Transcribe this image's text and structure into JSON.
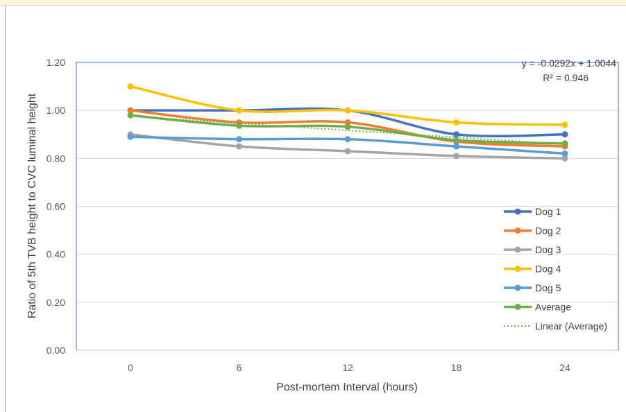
{
  "colors": {
    "dog1": "#4472C4",
    "dog2": "#ED7D31",
    "dog3": "#A5A5A5",
    "dog4": "#FFC000",
    "dog5": "#5B9BD5",
    "average": "#70AD47",
    "gridline": "#d9d9d9",
    "plot_border": "#4472C4"
  },
  "chart_data": {
    "type": "line",
    "title": "",
    "xlabel": "Post-mortem Interval (hours)",
    "ylabel": "Ratio of 5th TVB height to CVC luminal height",
    "categories": [
      "0",
      "6",
      "12",
      "18",
      "24"
    ],
    "x": [
      0,
      6,
      12,
      18,
      24
    ],
    "ylim": [
      0,
      1.2
    ],
    "yticks": [
      "0.00",
      "0.20",
      "0.40",
      "0.60",
      "0.80",
      "1.00",
      "1.20"
    ],
    "grid": true,
    "legend_position": "right",
    "series": [
      {
        "name": "Dog 1",
        "color_key": "dog1",
        "values": [
          1.0,
          1.0,
          1.0,
          0.9,
          0.9
        ]
      },
      {
        "name": "Dog 2",
        "color_key": "dog2",
        "values": [
          1.0,
          0.95,
          0.95,
          0.87,
          0.85
        ]
      },
      {
        "name": "Dog 3",
        "color_key": "dog3",
        "values": [
          0.9,
          0.85,
          0.83,
          0.81,
          0.8
        ]
      },
      {
        "name": "Dog 4",
        "color_key": "dog4",
        "values": [
          1.1,
          1.0,
          1.0,
          0.95,
          0.94
        ]
      },
      {
        "name": "Dog 5",
        "color_key": "dog5",
        "values": [
          0.89,
          0.88,
          0.88,
          0.85,
          0.82
        ]
      },
      {
        "name": "Average",
        "color_key": "average",
        "values": [
          0.98,
          0.936,
          0.932,
          0.876,
          0.862
        ]
      }
    ],
    "trendline": {
      "name": "Linear (Average)",
      "color_key": "average",
      "equation": "y = -0.0292x + 1.0044",
      "r_squared": "R² = 0.946",
      "slope_per_category": -0.0292,
      "intercept": 1.0044
    }
  }
}
